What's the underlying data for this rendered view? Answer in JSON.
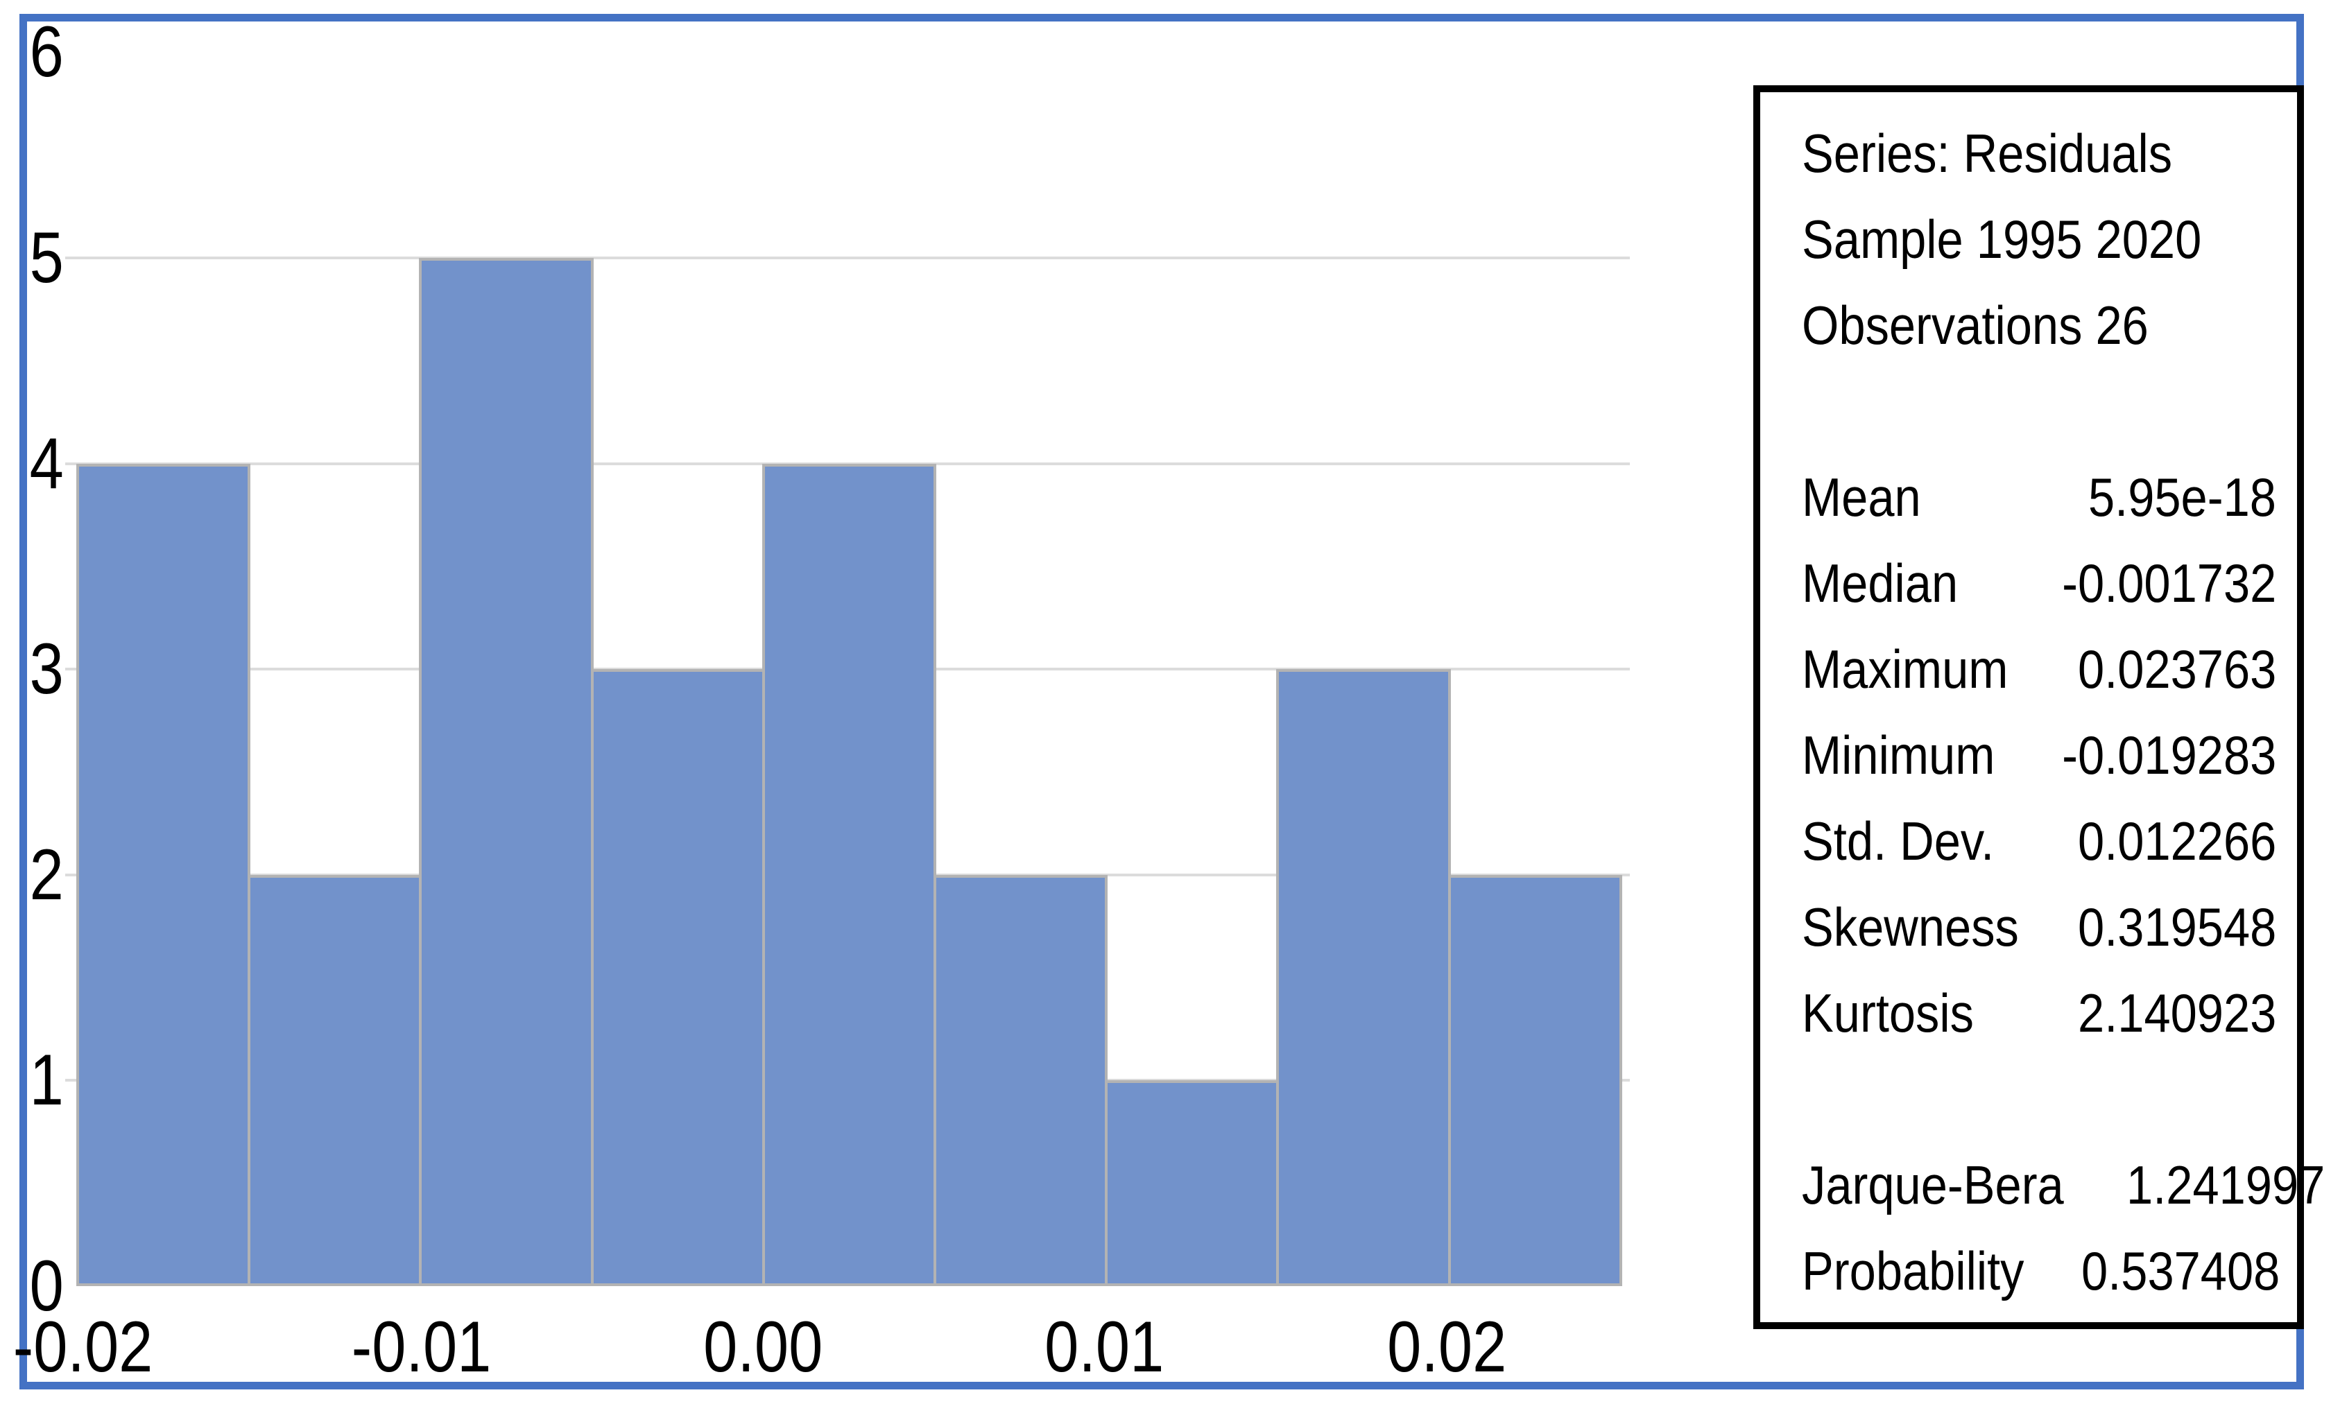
{
  "chart_data": {
    "type": "bar",
    "subtype": "histogram",
    "series_name": "Residuals",
    "bin_start": -0.02,
    "bin_width": 0.005,
    "bin_edges": [
      -0.02,
      -0.015,
      -0.01,
      -0.005,
      0.0,
      0.005,
      0.01,
      0.015,
      0.02,
      0.025
    ],
    "counts": [
      4,
      2,
      5,
      3,
      4,
      2,
      1,
      3,
      2
    ],
    "x_tick_labels": [
      "-0.02",
      "-0.01",
      "0.00",
      "0.01",
      "0.02"
    ],
    "y_tick_labels": [
      "0",
      "1",
      "2",
      "3",
      "4",
      "5",
      "6"
    ],
    "ylim": [
      0,
      6
    ],
    "gridlines_at": [
      1,
      2,
      3,
      4,
      5
    ],
    "grid": "horizontal-only",
    "legend": "none",
    "colors": {
      "bar_fill": "#7292CB",
      "bar_outline": "#b3b3b3",
      "gridline": "#dcdcdc",
      "frame_border": "#4472C4",
      "stats_border": "#000000",
      "text": "#000000"
    }
  },
  "stats_box": {
    "header_lines": [
      "Series: Residuals",
      "Sample 1995 2020",
      "Observations 26"
    ],
    "stats": [
      {
        "label": "Mean",
        "value": "5.95e-18"
      },
      {
        "label": "Median",
        "value": "-0.001732"
      },
      {
        "label": "Maximum",
        "value": "0.023763"
      },
      {
        "label": "Minimum",
        "value": "-0.019283"
      },
      {
        "label": "Std. Dev.",
        "value": "0.012266"
      },
      {
        "label": "Skewness",
        "value": "0.319548"
      },
      {
        "label": "Kurtosis",
        "value": "2.140923"
      }
    ],
    "tests": [
      {
        "label": "Jarque-Bera",
        "value": "1.241997"
      },
      {
        "label": "Probability",
        "value": "0.537408"
      }
    ]
  }
}
